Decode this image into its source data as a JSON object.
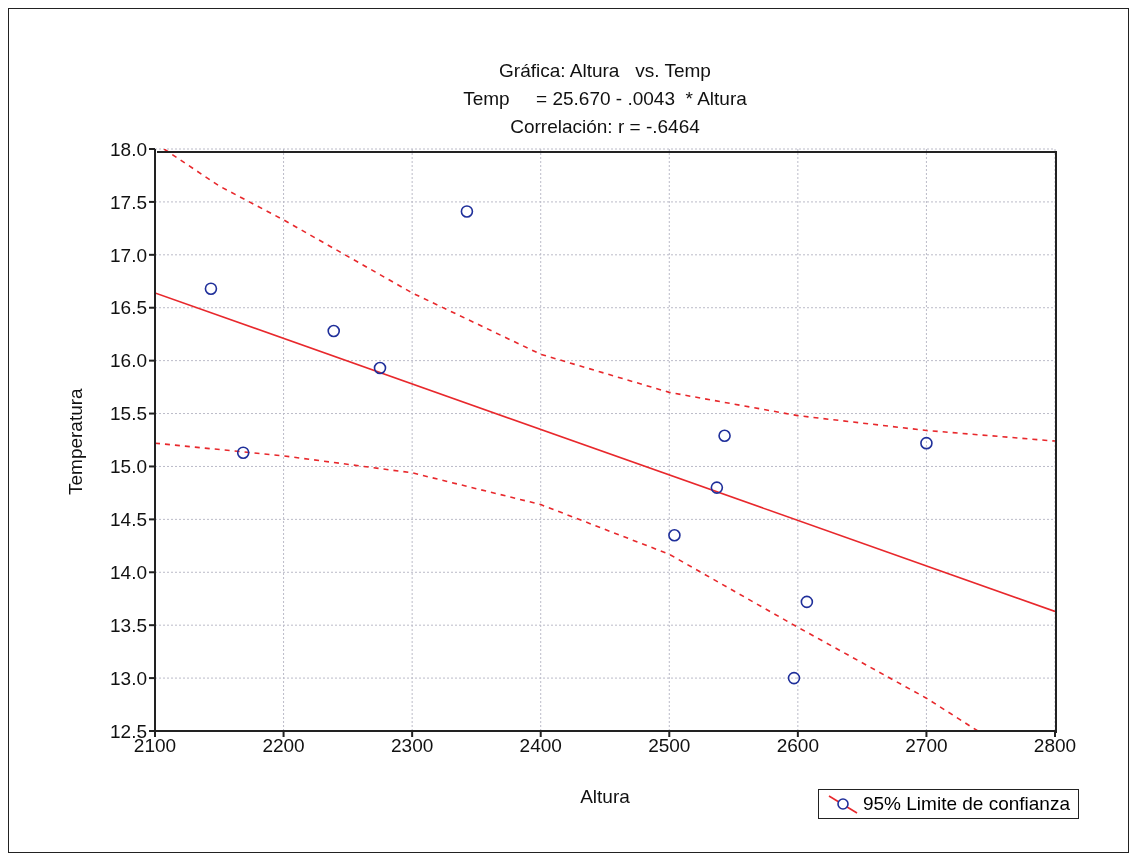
{
  "chart_data": {
    "type": "scatter",
    "title": "Gráfica: Altura   vs. Temp",
    "subtitle": "Temp     = 25.670 - .0043  * Altura\nCorrelación: r = -.6464",
    "xlabel": "Altura",
    "ylabel": "Temperatura",
    "x": [
      2143.5,
      2168.6,
      2239,
      2275,
      2342.6,
      2504,
      2537,
      2543,
      2597,
      2607,
      2700
    ],
    "series": [
      {
        "color": "#1f2f9a",
        "values": [
          16.68,
          15.13,
          16.28,
          15.93,
          17.41,
          14.35,
          14.8,
          15.29,
          13.0,
          13.72,
          15.22
        ],
        "marker": "circle"
      },
      {
        "type": "line",
        "name": "95% Limite de confianza",
        "color": "#e8282c",
        "x": [
          2100,
          2800
        ],
        "values": [
          16.64,
          13.63
        ],
        "line_style": "solid",
        "marker": "none"
      },
      {
        "type": "line",
        "color": "#e8282c",
        "x": [
          2107,
          2150,
          2200,
          2300,
          2400,
          2500,
          2600,
          2700,
          2800
        ],
        "values": [
          18.0,
          17.65,
          17.33,
          16.64,
          16.06,
          15.7,
          15.48,
          15.34,
          15.24
        ],
        "line_style": "dashed",
        "marker": "none"
      },
      {
        "type": "line",
        "color": "#e8282c",
        "x": [
          2100,
          2200,
          2300,
          2400,
          2500,
          2600,
          2700,
          2740
        ],
        "values": [
          15.22,
          15.1,
          14.94,
          14.64,
          14.17,
          13.48,
          12.81,
          12.5
        ],
        "line_style": "dashed",
        "marker": "none"
      }
    ],
    "xlim": [
      2100,
      2800
    ],
    "xticks": [
      2100,
      2200,
      2300,
      2400,
      2500,
      2600,
      2700,
      2800
    ],
    "ylim": [
      12.5,
      18
    ],
    "yticks": [
      {
        "value": 12.5,
        "label": "12.5"
      },
      {
        "value": 13,
        "label": "13.0"
      },
      {
        "value": 13.5,
        "label": "13.5"
      },
      {
        "value": 14,
        "label": "14.0"
      },
      {
        "value": 14.5,
        "label": "14.5"
      },
      {
        "value": 15,
        "label": "15.0"
      },
      {
        "value": 15.5,
        "label": "15.5"
      },
      {
        "value": 16,
        "label": "16.0"
      },
      {
        "value": 16.5,
        "label": "16.5"
      },
      {
        "value": 17,
        "label": "17.0"
      },
      {
        "value": 17.5,
        "label": "17.5"
      },
      {
        "value": 18,
        "label": "18.0"
      }
    ],
    "grid": true,
    "legend": "bottom right"
  }
}
